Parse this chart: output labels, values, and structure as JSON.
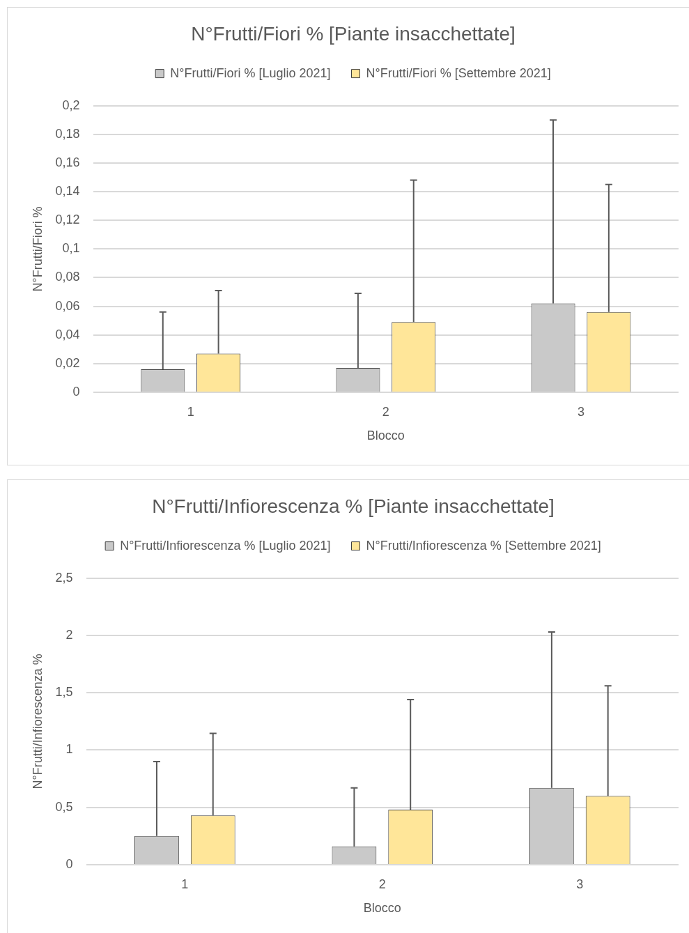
{
  "chart_data": [
    {
      "type": "bar",
      "title": "N°Frutti/Fiori % [Piante insacchettate]",
      "xlabel": "Blocco",
      "ylabel": "N°Frutti/Fiori %",
      "categories": [
        "1",
        "2",
        "3"
      ],
      "series": [
        {
          "name": "N°Frutti/Fiori % [Luglio 2021]",
          "color": "#c9c9c9",
          "values": [
            0.016,
            0.017,
            0.062
          ],
          "errors": [
            [
              0.016,
              0.056
            ],
            [
              0.017,
              0.069
            ],
            [
              0.062,
              0.19
            ]
          ]
        },
        {
          "name": "N°Frutti/Fiori % [Settembre 2021]",
          "color": "#ffe699",
          "values": [
            0.027,
            0.049,
            0.056
          ],
          "errors": [
            [
              0.027,
              0.071
            ],
            [
              0.049,
              0.148
            ],
            [
              0.056,
              0.145
            ]
          ]
        }
      ],
      "ylim": [
        0,
        0.2
      ],
      "yticks": [
        0,
        {
          "value": 0.02,
          "label": "0,02"
        },
        {
          "value": 0.04,
          "label": "0,04"
        },
        {
          "value": 0.06,
          "label": "0,06"
        },
        {
          "value": 0.08,
          "label": "0,08"
        },
        {
          "value": 0.1,
          "label": "0,1"
        },
        {
          "value": 0.12,
          "label": "0,12"
        },
        {
          "value": 0.14,
          "label": "0,14"
        },
        {
          "value": 0.16,
          "label": "0,16"
        },
        {
          "value": 0.18,
          "label": "0,18"
        },
        {
          "value": 0.2,
          "label": "0,2"
        }
      ],
      "grid": "y",
      "legend": "top"
    },
    {
      "type": "bar",
      "title": "N°Frutti/Infiorescenza % [Piante insacchettate]",
      "xlabel": "Blocco",
      "ylabel": "N°Frutti/Infiorescenza %",
      "categories": [
        "1",
        "2",
        "3"
      ],
      "series": [
        {
          "name": "N°Frutti/Infiorescenza % [Luglio 2021]",
          "color": "#c9c9c9",
          "values": [
            0.25,
            0.16,
            0.67
          ],
          "errors": [
            [
              0.25,
              0.9
            ],
            [
              0.16,
              0.67
            ],
            [
              0.67,
              2.03
            ]
          ]
        },
        {
          "name": "N°Frutti/Infiorescenza % [Settembre 2021]",
          "color": "#ffe699",
          "values": [
            0.43,
            0.48,
            0.6
          ],
          "errors": [
            [
              0.43,
              1.145
            ],
            [
              0.48,
              1.44
            ],
            [
              0.6,
              1.56
            ]
          ]
        }
      ],
      "ylim": [
        0,
        2.5
      ],
      "yticks": [
        0,
        {
          "value": 0.5,
          "label": "0,5"
        },
        1,
        {
          "value": 1.5,
          "label": "1,5"
        },
        2,
        {
          "value": 2.5,
          "label": "2,5"
        }
      ],
      "grid": "y",
      "legend": "top"
    }
  ]
}
